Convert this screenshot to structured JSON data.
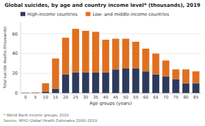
{
  "chart_data": {
    "type": "bar",
    "stacked": true,
    "title": "Global suicides, by age and country income level* (thousands), 2019",
    "x_label": "Age groups (years)",
    "y_label": "Total suicide deaths (thousands)",
    "annotations": [
      "* World Bank income groups, 2020",
      "Source: WHO Global Health Estimates 2000–2019"
    ],
    "categories": [
      "0",
      "5",
      "10",
      "15",
      "20",
      "25",
      "30",
      "35",
      "40",
      "45",
      "50",
      "55",
      "60",
      "65",
      "70",
      "75",
      "80",
      "85"
    ],
    "series": [
      {
        "name": "High-income countries",
        "color": "#2d3a5e",
        "values": [
          0.2,
          0.3,
          1.5,
          4.5,
          19,
          21,
          21,
          21,
          21,
          24,
          25,
          25,
          22,
          19,
          17,
          14,
          10,
          10
        ]
      },
      {
        "name": "Low- and middle-income countries",
        "color": "#e07020",
        "values": [
          0.3,
          0.5,
          8.5,
          30.5,
          37,
          44,
          42,
          41,
          33,
          31,
          30,
          27,
          23,
          21,
          16,
          10,
          14,
          12
        ]
      }
    ],
    "ylim": [
      0,
      72
    ],
    "yticks": [
      0,
      20,
      40,
      60
    ],
    "grid": true,
    "legend": "upper left"
  }
}
